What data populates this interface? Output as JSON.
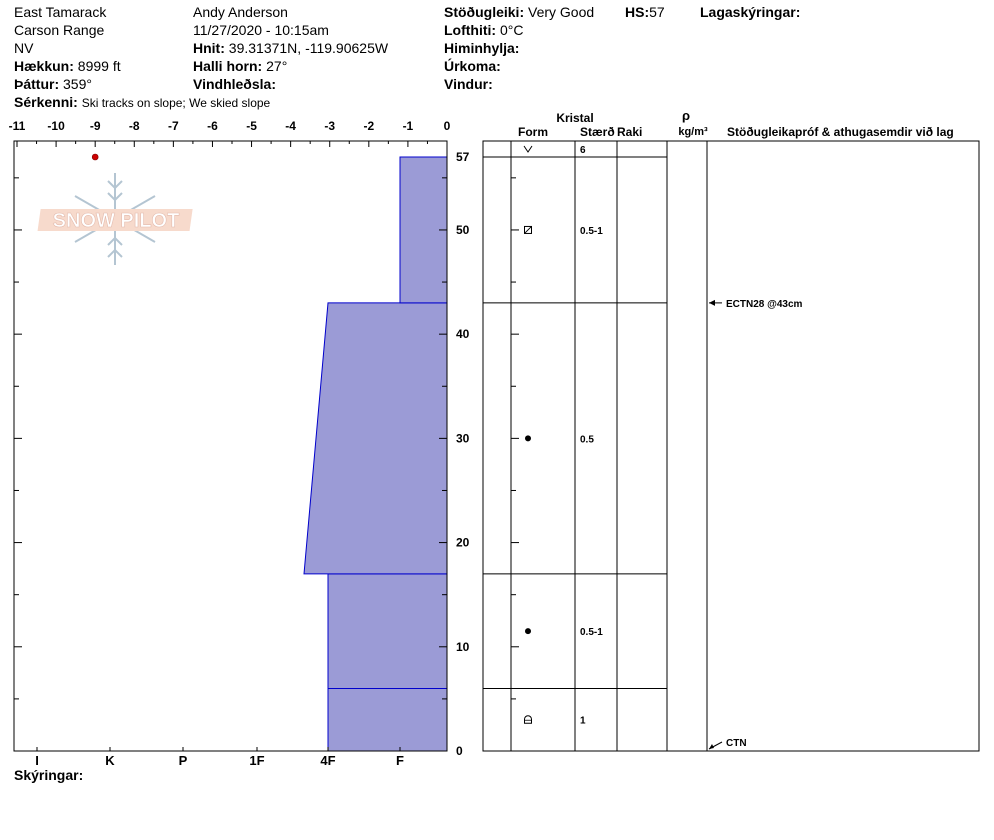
{
  "header": {
    "location": "East Tamarack",
    "range": "Carson Range",
    "state": "NV",
    "elevation_label": "Hækkun:",
    "elevation_value": "8999 ft",
    "aspect_label": "Þáttur:",
    "aspect_value": "359°",
    "features_label": "Sérkenni:",
    "features_value": "Ski tracks on slope; We skied slope",
    "observer": "Andy Anderson",
    "datetime": "11/27/2020 - 10:15am",
    "coords_label": "Hnit:",
    "coords_value": "39.31371N, -119.90625W",
    "slope_label": "Halli horn:",
    "slope_value": "27°",
    "wind_loading_label": "Vindhleðsla:",
    "stability_label": "Stöðugleiki:",
    "stability_value": "Very Good",
    "hs_label": "HS:",
    "hs_value": "57",
    "air_temp_label": "Lofthiti:",
    "air_temp_value": "0°C",
    "sky_label": "Himinhylja:",
    "precip_label": "Úrkoma:",
    "wind_label": "Vindur:",
    "layer_notes_label": "Lagaskýringar:"
  },
  "logo_text": "SNOW PILOT",
  "columns": {
    "crystal": "Kristal",
    "form": "Form",
    "size": "Stærð",
    "moisture": "Raki",
    "rho": "ρ",
    "density_unit": "kg/m³",
    "tests": "Stöðugleikapróf & athugasemdir við lag"
  },
  "footer": {
    "notes_label": "Skýringar:"
  },
  "colors": {
    "hardness_fill": "#9b9bd6",
    "hardness_stroke": "#0000cc",
    "temp_point": "#cc0000"
  },
  "chart_data": {
    "type": "snow_profile",
    "temperature_axis": {
      "ticks": [
        "-11",
        "-10",
        "-9",
        "-8",
        "-7",
        "-6",
        "-5",
        "-4",
        "-3",
        "-2",
        "-1",
        "0"
      ],
      "range": [
        -11,
        0
      ]
    },
    "depth_axis": {
      "ticks": [
        "0",
        "10",
        "20",
        "30",
        "40",
        "50",
        "57"
      ],
      "range": [
        0,
        57
      ],
      "unit": "cm"
    },
    "hardness_axis": {
      "ticks": [
        "I",
        "K",
        "P",
        "1F",
        "4F",
        "F"
      ]
    },
    "hardness_layers": [
      {
        "bottom": 0,
        "top": 6,
        "hardness_bottom": "4F",
        "hardness_top": "4F"
      },
      {
        "bottom": 6,
        "top": 17,
        "hardness_bottom": "4F",
        "hardness_top": "4F"
      },
      {
        "bottom": 17,
        "top": 43,
        "hardness_bottom": "4F-",
        "hardness_top": "4F"
      },
      {
        "bottom": 43,
        "top": 57,
        "hardness_bottom": "F",
        "hardness_top": "F"
      }
    ],
    "temperature_points": [
      {
        "depth": 57,
        "temp": -9
      }
    ],
    "layer_boundaries": [
      0,
      6,
      17,
      43,
      57
    ],
    "crystal_layers": [
      {
        "bottom": 0,
        "top": 6,
        "form": "faceted-rounded",
        "size": "1"
      },
      {
        "bottom": 6,
        "top": 17,
        "form": "rounded",
        "size": "0.5-1"
      },
      {
        "bottom": 17,
        "top": 43,
        "form": "rounded",
        "size": "0.5"
      },
      {
        "bottom": 43,
        "top": 57,
        "form": "faceted",
        "size": "0.5-1"
      }
    ],
    "surface": {
      "form": "surface-hoar",
      "size": "6"
    },
    "tests": [
      {
        "depth": 43,
        "text": "ECTN28 @43cm"
      },
      {
        "depth": 0,
        "text": "CTN"
      }
    ]
  }
}
